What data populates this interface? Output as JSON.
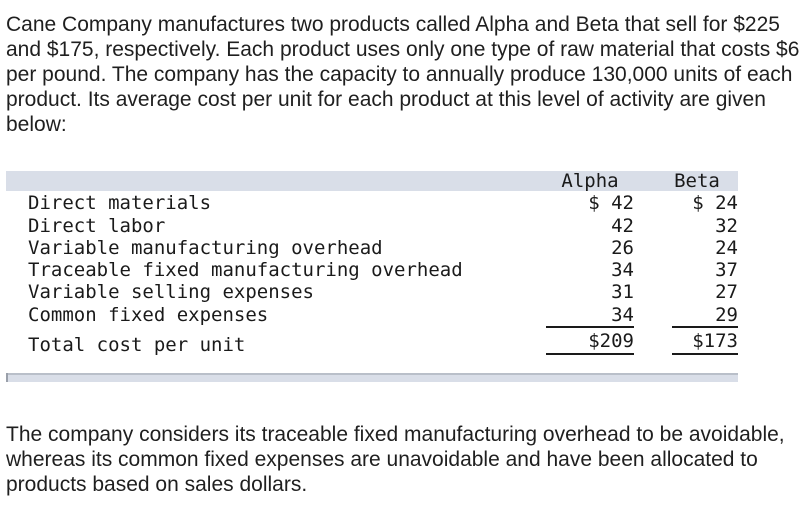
{
  "intro": "Cane Company manufactures two products called Alpha and Beta that sell for $225 and $175, respectively. Each product uses only one type of raw material that costs $6 per pound. The company has the capacity to annually produce 130,000 units of each product. Its average cost per unit for each product at this level of activity are given below:",
  "table": {
    "headers": {
      "alpha": "Alpha",
      "beta": "Beta"
    },
    "rows": [
      {
        "label": "Direct materials",
        "alpha": "$ 42",
        "beta": "$ 24"
      },
      {
        "label": "Direct labor",
        "alpha": "42",
        "beta": "32"
      },
      {
        "label": "Variable manufacturing overhead",
        "alpha": "26",
        "beta": "24"
      },
      {
        "label": "Traceable fixed manufacturing overhead",
        "alpha": "34",
        "beta": "37"
      },
      {
        "label": "Variable selling expenses",
        "alpha": "31",
        "beta": "27"
      },
      {
        "label": "Common fixed expenses",
        "alpha": "34",
        "beta": "29"
      }
    ],
    "total": {
      "label": "Total cost per unit",
      "alpha": "$209",
      "beta": "$173"
    }
  },
  "outro": "The company considers its traceable fixed manufacturing overhead to be avoidable, whereas its common fixed expenses are unavoidable and have been allocated to products based on sales dollars."
}
